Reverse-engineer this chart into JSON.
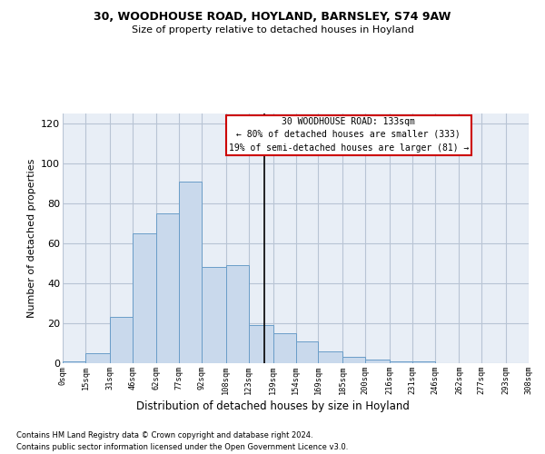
{
  "title_line1": "30, WOODHOUSE ROAD, HOYLAND, BARNSLEY, S74 9AW",
  "title_line2": "Size of property relative to detached houses in Hoyland",
  "xlabel": "Distribution of detached houses by size in Hoyland",
  "ylabel": "Number of detached properties",
  "footnote1": "Contains HM Land Registry data © Crown copyright and database right 2024.",
  "footnote2": "Contains public sector information licensed under the Open Government Licence v3.0.",
  "annotation_line1": "30 WOODHOUSE ROAD: 133sqm",
  "annotation_line2": "← 80% of detached houses are smaller (333)",
  "annotation_line3": "19% of semi-detached houses are larger (81) →",
  "bin_labels": [
    "0sqm",
    "15sqm",
    "31sqm",
    "46sqm",
    "62sqm",
    "77sqm",
    "92sqm",
    "108sqm",
    "123sqm",
    "139sqm",
    "154sqm",
    "169sqm",
    "185sqm",
    "200sqm",
    "216sqm",
    "231sqm",
    "246sqm",
    "262sqm",
    "277sqm",
    "293sqm",
    "308sqm"
  ],
  "bin_edges": [
    0,
    15,
    31,
    46,
    62,
    77,
    92,
    108,
    123,
    139,
    154,
    169,
    185,
    200,
    216,
    231,
    246,
    262,
    277,
    293,
    308
  ],
  "bar_heights": [
    1,
    5,
    23,
    65,
    75,
    91,
    48,
    49,
    19,
    15,
    11,
    6,
    3,
    2,
    1,
    1,
    0,
    0,
    0,
    0
  ],
  "property_size": 133,
  "bar_fill_color": "#c9d9ec",
  "bar_edge_color": "#6a9dc8",
  "vline_color": "#000000",
  "grid_color": "#b8c4d4",
  "bg_color": "#e8eef6",
  "annotation_box_color": "#cc0000",
  "ylim": [
    0,
    125
  ],
  "yticks": [
    0,
    20,
    40,
    60,
    80,
    100,
    120
  ]
}
